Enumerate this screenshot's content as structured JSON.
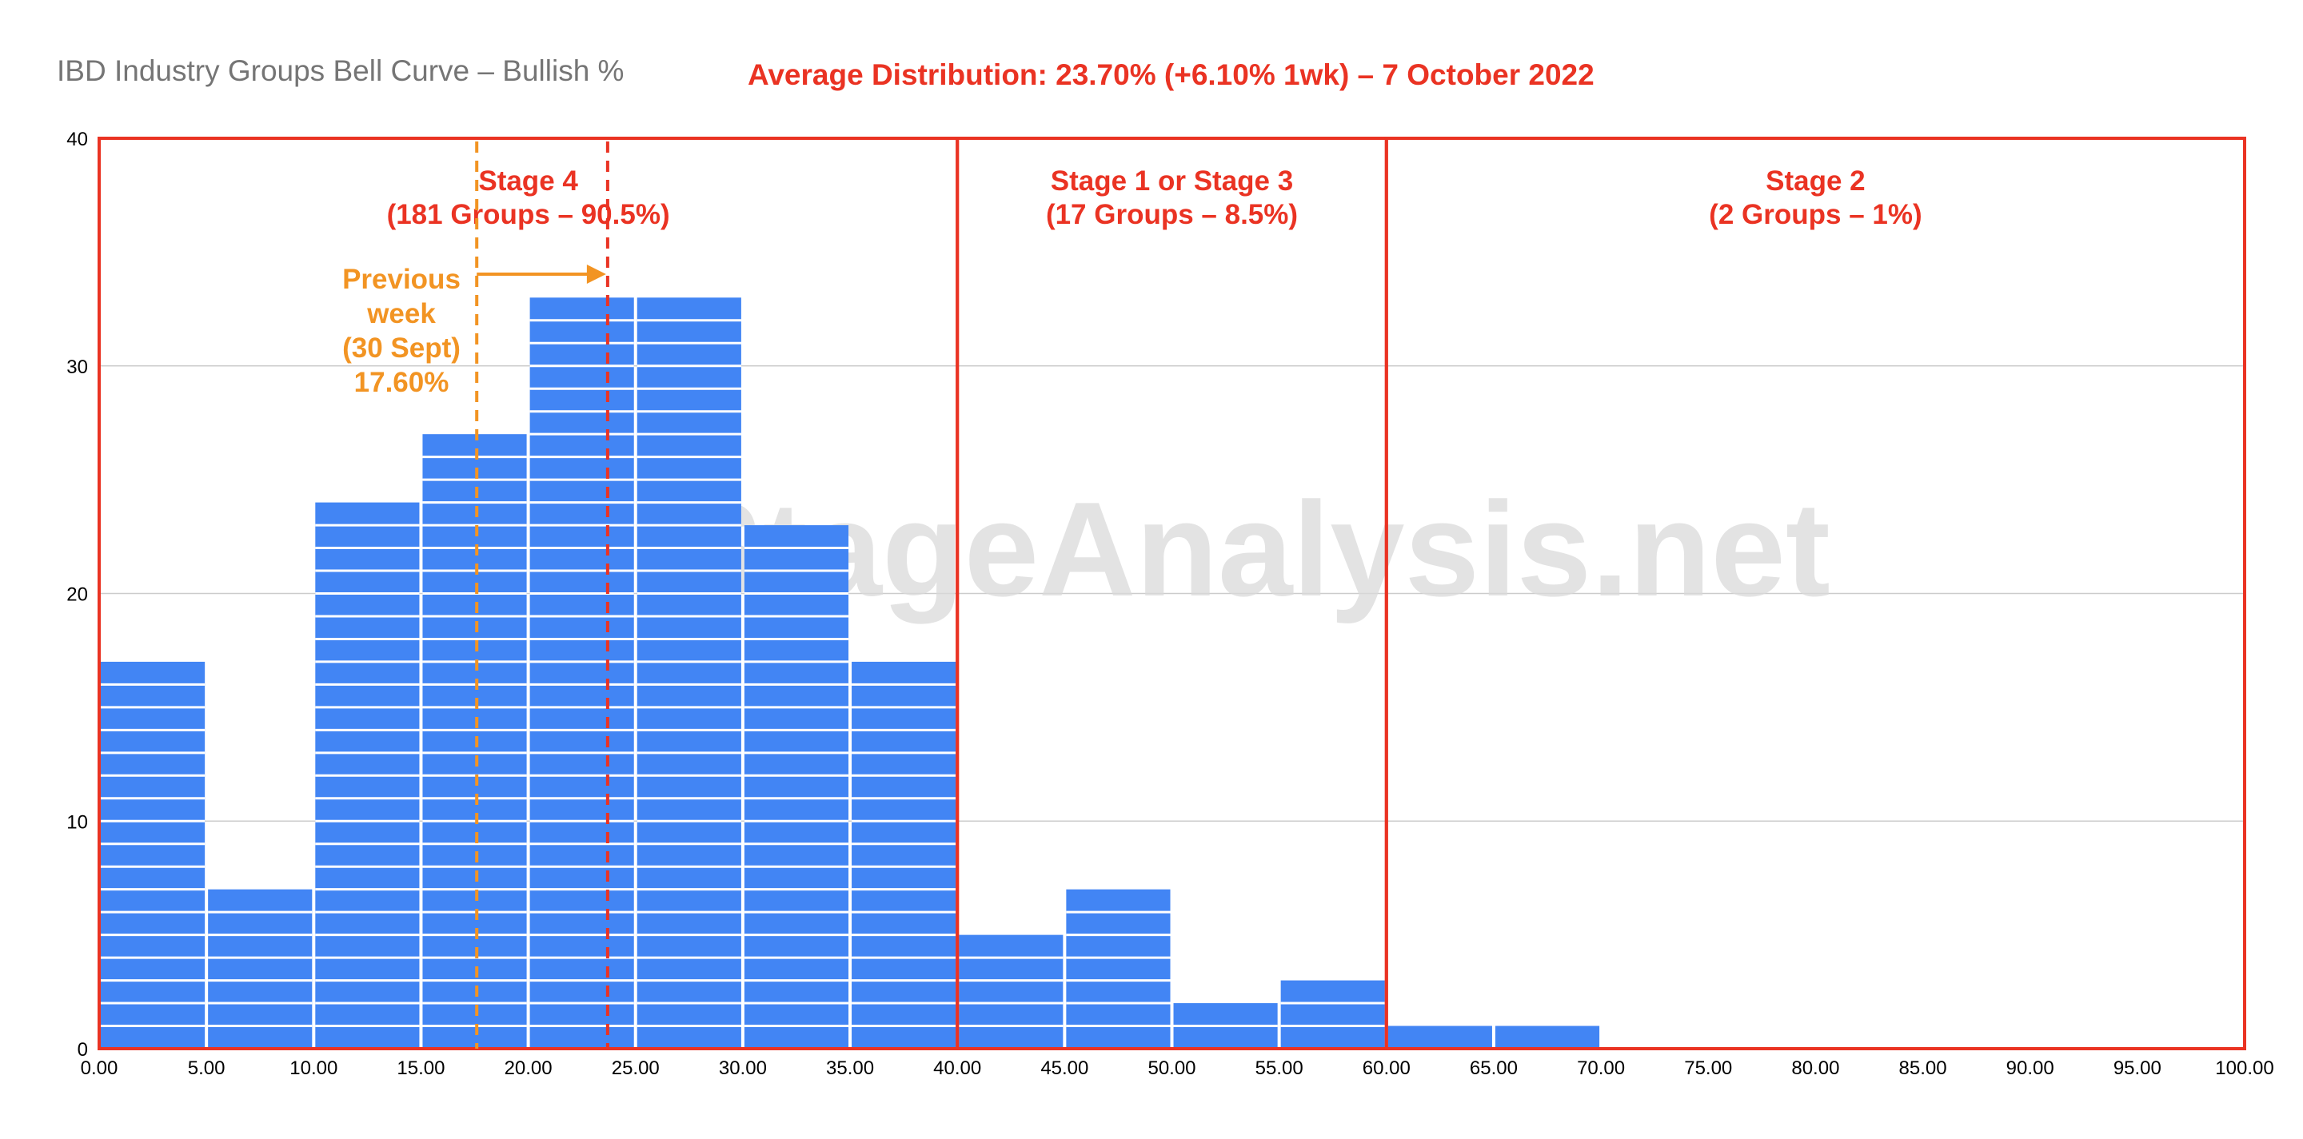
{
  "chart_data": {
    "type": "bar",
    "title": "IBD Industry Groups Bell Curve – Bullish %",
    "subtitle": "Average Distribution: 23.70% (+6.10% 1wk) – 7 October 2022",
    "xlabel": "",
    "ylabel": "",
    "xlim": [
      0,
      100
    ],
    "ylim": [
      0,
      40
    ],
    "x_ticks": [
      "0.00",
      "5.00",
      "10.00",
      "15.00",
      "20.00",
      "25.00",
      "30.00",
      "35.00",
      "40.00",
      "45.00",
      "50.00",
      "55.00",
      "60.00",
      "65.00",
      "70.00",
      "75.00",
      "80.00",
      "85.00",
      "90.00",
      "95.00",
      "100.00"
    ],
    "y_ticks": [
      "0",
      "10",
      "20",
      "30",
      "40"
    ],
    "bins": [
      {
        "from": 0,
        "to": 5,
        "value": 17
      },
      {
        "from": 5,
        "to": 10,
        "value": 7
      },
      {
        "from": 10,
        "to": 15,
        "value": 24
      },
      {
        "from": 15,
        "to": 20,
        "value": 27
      },
      {
        "from": 20,
        "to": 25,
        "value": 33
      },
      {
        "from": 25,
        "to": 30,
        "value": 33
      },
      {
        "from": 30,
        "to": 35,
        "value": 23
      },
      {
        "from": 35,
        "to": 40,
        "value": 17
      },
      {
        "from": 40,
        "to": 45,
        "value": 5
      },
      {
        "from": 45,
        "to": 50,
        "value": 7
      },
      {
        "from": 50,
        "to": 55,
        "value": 2
      },
      {
        "from": 55,
        "to": 60,
        "value": 3
      },
      {
        "from": 60,
        "to": 65,
        "value": 1
      },
      {
        "from": 65,
        "to": 70,
        "value": 1
      },
      {
        "from": 70,
        "to": 75,
        "value": 0
      },
      {
        "from": 75,
        "to": 80,
        "value": 0
      },
      {
        "from": 80,
        "to": 85,
        "value": 0
      },
      {
        "from": 85,
        "to": 90,
        "value": 0
      },
      {
        "from": 90,
        "to": 95,
        "value": 0
      },
      {
        "from": 95,
        "to": 100,
        "value": 0
      }
    ],
    "grid": true,
    "stages": [
      {
        "from": 0,
        "to": 40,
        "label_line1": "Stage 4",
        "label_line2": "(181 Groups – 90.5%)"
      },
      {
        "from": 40,
        "to": 60,
        "label_line1": "Stage 1 or Stage 3",
        "label_line2": "(17 Groups – 8.5%)"
      },
      {
        "from": 60,
        "to": 100,
        "label_line1": "Stage 2",
        "label_line2": "(2 Groups – 1%)"
      }
    ],
    "current_average": 23.7,
    "previous_average": 17.6,
    "previous_week_label": [
      "Previous",
      "week",
      "(30 Sept)",
      "17.60%"
    ],
    "watermark": "© StageAnalysis.net",
    "colors": {
      "bar": "#4285f4",
      "stage_border": "#ea3323",
      "current_line": "#ea3323",
      "previous_line": "#f29423",
      "title": "#757575",
      "subtitle": "#ea3323",
      "stage_label": "#ea3323",
      "previous_label": "#f29423",
      "grid": "#cccccc",
      "axis_text": "#000000",
      "watermark": "#d9d9d9"
    }
  }
}
